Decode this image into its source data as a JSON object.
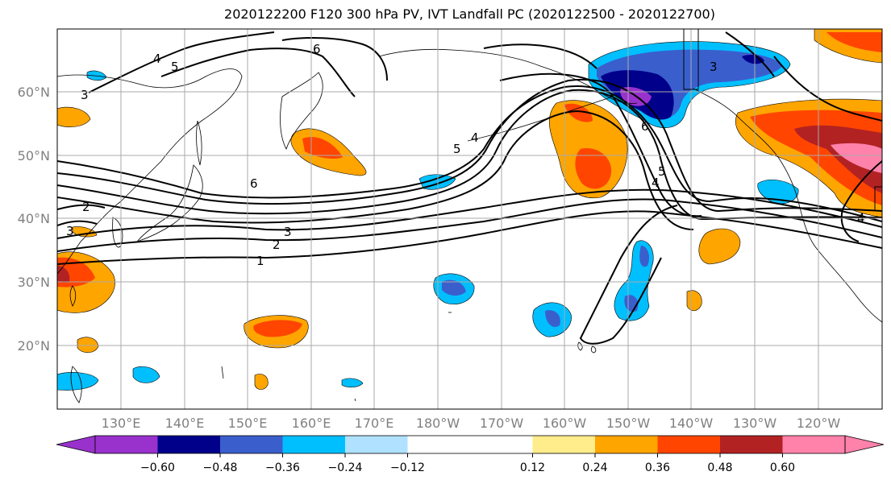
{
  "title": "2020122200 F120 300 hPa PV, IVT Landfall PC (2020122500 - 2020122700)",
  "lat_labels": [
    "20°N",
    "30°N",
    "40°N",
    "50°N",
    "60°N"
  ],
  "lon_labels": [
    "130°E",
    "140°E",
    "150°E",
    "160°E",
    "170°E",
    "180°W",
    "170°W",
    "160°W",
    "150°W",
    "140°W",
    "130°W",
    "120°W"
  ],
  "colorbar": {
    "colors": [
      "#9932cc",
      "#00008b",
      "#3a5fcd",
      "#00bfff",
      "#b0e2ff",
      "#ffffff",
      "#ffffff",
      "#ffec8b",
      "#ffa500",
      "#ff4500",
      "#b22222",
      "#ff82ab"
    ],
    "tick_labels": [
      "−0.60",
      "−0.48",
      "−0.36",
      "−0.24",
      "−0.12",
      "0.12",
      "0.24",
      "0.36",
      "0.48",
      "0.60"
    ]
  },
  "pv_contour_labels": [
    "1",
    "2",
    "3",
    "4",
    "5",
    "6"
  ]
}
